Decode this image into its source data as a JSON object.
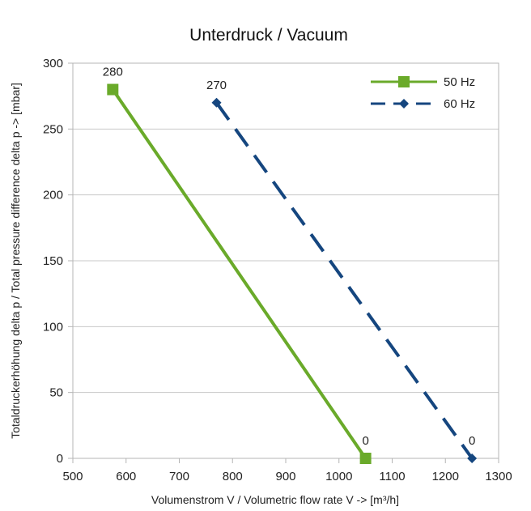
{
  "chart_data": {
    "type": "line",
    "title": "Unterdruck / Vacuum",
    "xlabel": "Volumenstrom V / Volumetric flow rate V -> [m³/h]",
    "ylabel": "Totaldruckerhöhung delta p / Total pressure difference delta p -> [mbar]",
    "xlim": [
      500,
      1300
    ],
    "ylim": [
      0,
      300
    ],
    "xticks": [
      500,
      600,
      700,
      800,
      900,
      1000,
      1100,
      1200,
      1300
    ],
    "yticks": [
      0,
      50,
      100,
      150,
      200,
      250,
      300
    ],
    "grid": "horizontal",
    "legend_position": "top-right",
    "series": [
      {
        "name": "50 Hz",
        "color": "#6aaa2a",
        "line_style": "solid",
        "marker": "square",
        "points": [
          {
            "x": 575,
            "y": 280,
            "label": "280"
          },
          {
            "x": 1050,
            "y": 0,
            "label": "0"
          }
        ]
      },
      {
        "name": "60 Hz",
        "color": "#15467f",
        "line_style": "dashed",
        "marker": "diamond",
        "points": [
          {
            "x": 770,
            "y": 270,
            "label": "270"
          },
          {
            "x": 1250,
            "y": 0,
            "label": "0"
          }
        ]
      }
    ]
  }
}
